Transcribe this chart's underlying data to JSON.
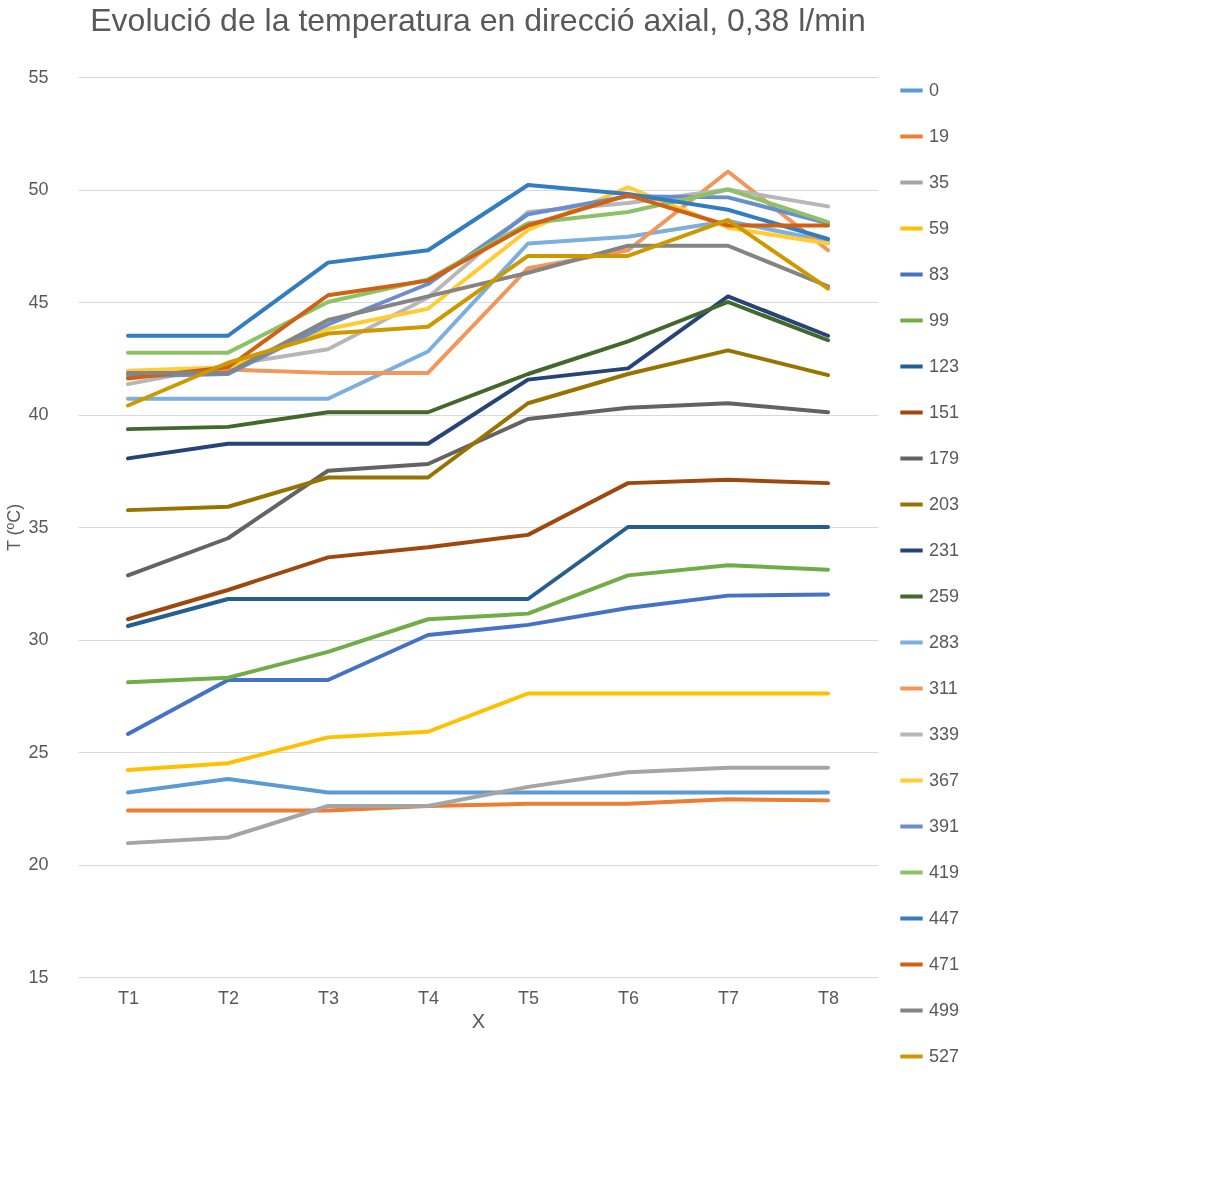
{
  "chart_data": {
    "type": "line",
    "title": "Evolució de la temperatura en direcció axial, 0,38 l/min",
    "xlabel": "X",
    "ylabel": "T (ºC)",
    "categories": [
      "T1",
      "T2",
      "T3",
      "T4",
      "T5",
      "T6",
      "T7",
      "T8"
    ],
    "ylim": [
      15,
      55
    ],
    "yticks": [
      15,
      20,
      25,
      30,
      35,
      40,
      45,
      50,
      55
    ],
    "grid": "y",
    "legend": "right",
    "marker": "none",
    "line_style": "solid",
    "series": [
      {
        "name": "0",
        "color": "#5b9bd5",
        "values": [
          23.2,
          23.8,
          23.2,
          23.2,
          23.2,
          23.2,
          23.2,
          23.2
        ]
      },
      {
        "name": "19",
        "color": "#ed7d31",
        "values": [
          22.4,
          22.4,
          22.4,
          22.6,
          22.7,
          22.7,
          22.9,
          22.85
        ]
      },
      {
        "name": "35",
        "color": "#a5a5a5",
        "values": [
          20.95,
          21.2,
          22.6,
          22.6,
          23.45,
          24.1,
          24.3,
          24.3
        ]
      },
      {
        "name": "59",
        "color": "#ffc000",
        "values": [
          24.2,
          24.5,
          25.65,
          25.9,
          27.6,
          27.6,
          27.6,
          27.6
        ]
      },
      {
        "name": "83",
        "color": "#4472c4",
        "values": [
          25.8,
          28.2,
          28.2,
          30.2,
          30.65,
          31.4,
          31.95,
          32.0
        ]
      },
      {
        "name": "99",
        "color": "#70ad47",
        "values": [
          28.1,
          28.3,
          29.45,
          30.9,
          31.15,
          32.85,
          33.3,
          33.1
        ]
      },
      {
        "name": "123",
        "color": "#255e91",
        "values": [
          30.6,
          31.8,
          31.8,
          31.8,
          31.8,
          35.0,
          35.0,
          35.0
        ]
      },
      {
        "name": "151",
        "color": "#9e480e",
        "values": [
          30.9,
          32.2,
          33.65,
          34.1,
          34.65,
          36.95,
          37.1,
          36.95
        ]
      },
      {
        "name": "179",
        "color": "#636363",
        "values": [
          32.85,
          34.5,
          37.5,
          37.8,
          39.8,
          40.3,
          40.5,
          40.1
        ]
      },
      {
        "name": "203",
        "color": "#997300",
        "values": [
          35.75,
          35.9,
          37.2,
          37.2,
          40.5,
          41.8,
          42.85,
          41.75
        ]
      },
      {
        "name": "231",
        "color": "#264478",
        "values": [
          38.05,
          38.7,
          38.7,
          38.7,
          41.55,
          42.05,
          45.25,
          43.5
        ]
      },
      {
        "name": "259",
        "color": "#43682b",
        "values": [
          39.35,
          39.45,
          40.1,
          40.1,
          41.8,
          43.25,
          45.0,
          43.3
        ]
      },
      {
        "name": "283",
        "color": "#7cafdd",
        "values": [
          40.7,
          40.7,
          40.7,
          42.8,
          47.6,
          47.9,
          48.6,
          47.7
        ]
      },
      {
        "name": "311",
        "color": "#f1975a",
        "values": [
          41.8,
          42.0,
          41.85,
          41.85,
          46.5,
          47.3,
          50.8,
          47.3
        ]
      },
      {
        "name": "339",
        "color": "#b7b7b7",
        "values": [
          41.35,
          42.2,
          42.9,
          45.2,
          49.0,
          49.4,
          50.0,
          49.25
        ]
      },
      {
        "name": "367",
        "color": "#ffcd33",
        "values": [
          41.95,
          42.1,
          43.8,
          44.7,
          48.2,
          50.1,
          48.3,
          47.6
        ]
      },
      {
        "name": "391",
        "color": "#698ed0",
        "values": [
          41.7,
          41.8,
          44.0,
          45.8,
          48.9,
          49.7,
          49.65,
          48.5
        ]
      },
      {
        "name": "419",
        "color": "#8cc168",
        "values": [
          42.75,
          42.75,
          45.0,
          46.0,
          48.5,
          49.0,
          50.0,
          48.55
        ]
      },
      {
        "name": "447",
        "color": "#327dc2",
        "values": [
          43.5,
          43.5,
          46.75,
          47.3,
          50.2,
          49.8,
          49.1,
          47.8
        ]
      },
      {
        "name": "471",
        "color": "#d26012",
        "values": [
          41.6,
          42.1,
          45.3,
          45.95,
          48.4,
          49.75,
          48.4,
          48.4
        ]
      },
      {
        "name": "499",
        "color": "#848484",
        "values": [
          41.85,
          41.85,
          44.2,
          45.25,
          46.3,
          47.5,
          47.5,
          45.7
        ]
      },
      {
        "name": "527",
        "color": "#cc9a00",
        "values": [
          40.4,
          42.3,
          43.6,
          43.9,
          47.05,
          47.05,
          48.65,
          45.6
        ]
      }
    ]
  }
}
